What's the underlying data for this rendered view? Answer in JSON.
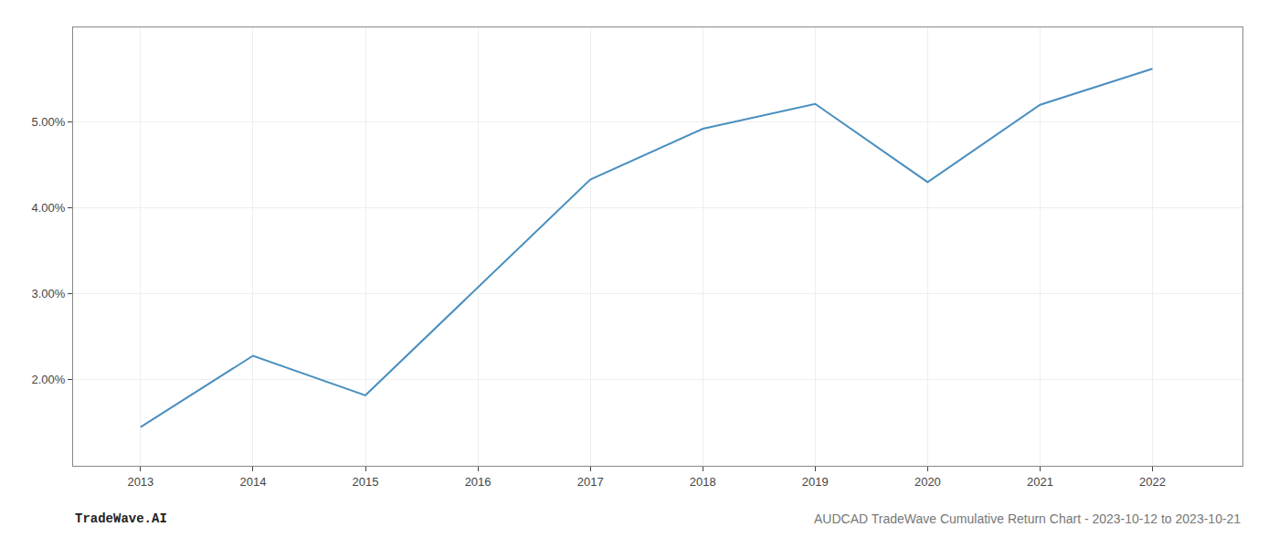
{
  "chart_data": {
    "type": "line",
    "x": [
      2013,
      2014,
      2015,
      2016,
      2017,
      2018,
      2019,
      2020,
      2021,
      2022
    ],
    "values": [
      1.45,
      2.28,
      1.82,
      3.08,
      4.33,
      4.92,
      5.21,
      4.3,
      5.2,
      5.62
    ],
    "color": "#4a8fc0",
    "xlim": [
      2012.4,
      2022.8
    ],
    "xticks": [
      2013,
      2014,
      2015,
      2016,
      2017,
      2018,
      2019,
      2020,
      2021,
      2022
    ],
    "ylim": [
      1.0,
      6.1
    ],
    "yticks": [
      {
        "value": 2.0,
        "label": "2.00%"
      },
      {
        "value": 3.0,
        "label": "3.00%"
      },
      {
        "value": 4.0,
        "label": "4.00%"
      },
      {
        "value": 5.0,
        "label": "5.00%"
      }
    ],
    "grid": true,
    "annotations": [
      "TradeWave.AI",
      "AUDCAD TradeWave Cumulative Return Chart - 2023-10-12 to 2023-10-21"
    ]
  }
}
